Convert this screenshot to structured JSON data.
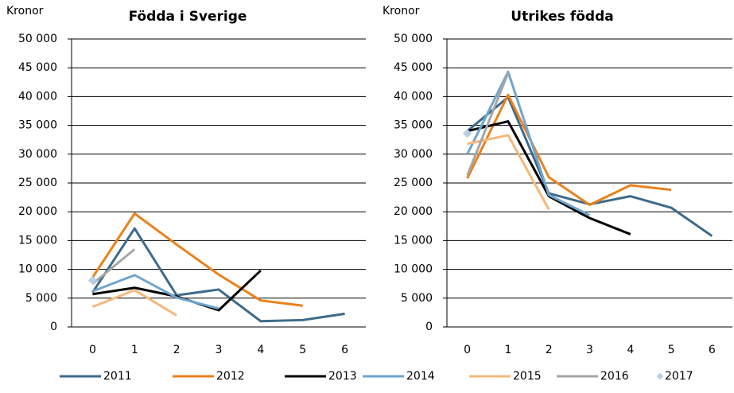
{
  "chart_data": [
    {
      "type": "line",
      "title": "Födda i Sverige",
      "y_label": "Kronor",
      "categories": [
        "0",
        "1",
        "2",
        "3",
        "4",
        "5",
        "6"
      ],
      "ylim": [
        0,
        50000
      ],
      "yticks": [
        0,
        {
          "value": 5000,
          "label": "5 000"
        },
        {
          "value": 10000,
          "label": "10 000"
        },
        {
          "value": 15000,
          "label": "15 000"
        },
        {
          "value": 20000,
          "label": "20 000"
        },
        {
          "value": 25000,
          "label": "25 000"
        },
        {
          "value": 30000,
          "label": "30 000"
        },
        {
          "value": 35000,
          "label": "35 000"
        },
        {
          "value": 40000,
          "label": "40 000"
        },
        {
          "value": 45000,
          "label": "45 000"
        },
        {
          "value": 50000,
          "label": "50 000"
        }
      ],
      "grid": true,
      "series": [
        {
          "name": "2011",
          "color": "#3e6a8a",
          "values": [
            6000,
            17100,
            5500,
            6500,
            1000,
            1200,
            2300
          ]
        },
        {
          "name": "2012",
          "color": "#e8821e",
          "values": [
            8600,
            19700,
            14300,
            9100,
            4600,
            3700,
            null
          ]
        },
        {
          "name": "2013",
          "color": "#000000",
          "values": [
            5700,
            6800,
            5300,
            2900,
            9800,
            null,
            null
          ]
        },
        {
          "name": "2014",
          "color": "#6fa5cf",
          "values": [
            6200,
            9000,
            5100,
            3200,
            null,
            null,
            null
          ]
        },
        {
          "name": "2015",
          "color": "#f5b87a",
          "values": [
            3500,
            6400,
            2000,
            null,
            null,
            null,
            null
          ]
        },
        {
          "name": "2016",
          "color": "#a6a6a6",
          "values": [
            7500,
            13500,
            null,
            null,
            null,
            null,
            null
          ]
        },
        {
          "name": "2017",
          "color": "#b8d0e0",
          "marker_only": true,
          "values": [
            8100,
            null,
            null,
            null,
            null,
            null,
            null
          ]
        }
      ]
    },
    {
      "type": "line",
      "title": "Utrikes födda",
      "y_label": "Kronor",
      "categories": [
        "0",
        "1",
        "2",
        "3",
        "4",
        "5",
        "6"
      ],
      "ylim": [
        0,
        50000
      ],
      "yticks": [
        0,
        {
          "value": 5000,
          "label": "5 000"
        },
        {
          "value": 10000,
          "label": "10 000"
        },
        {
          "value": 15000,
          "label": "15 000"
        },
        {
          "value": 20000,
          "label": "20 000"
        },
        {
          "value": 25000,
          "label": "25 000"
        },
        {
          "value": 30000,
          "label": "30 000"
        },
        {
          "value": 35000,
          "label": "35 000"
        },
        {
          "value": 40000,
          "label": "40 000"
        },
        {
          "value": 45000,
          "label": "45 000"
        },
        {
          "value": 50000,
          "label": "50 000"
        }
      ],
      "grid": true,
      "series": [
        {
          "color": "#3e6a8a",
          "values": [
            34000,
            39900,
            23200,
            21300,
            22700,
            20700,
            15800
          ]
        },
        {
          "color": "#e8821e",
          "values": [
            25800,
            40300,
            26000,
            21200,
            24600,
            23800,
            null
          ]
        },
        {
          "color": "#000000",
          "values": [
            34000,
            35700,
            22700,
            18900,
            16100,
            null,
            null
          ]
        },
        {
          "color": "#6fa5cf",
          "values": [
            30000,
            44300,
            22900,
            19400,
            null,
            null,
            null
          ]
        },
        {
          "color": "#f5b87a",
          "values": [
            31800,
            33300,
            20400,
            null,
            null,
            null,
            null
          ]
        },
        {
          "color": "#a6a6a6",
          "values": [
            26300,
            44100,
            null,
            null,
            null,
            null,
            null
          ]
        },
        {
          "color": "#b8d0e0",
          "marker_only": true,
          "values": [
            33600,
            null,
            null,
            null,
            null,
            null,
            null
          ]
        }
      ]
    }
  ]
}
